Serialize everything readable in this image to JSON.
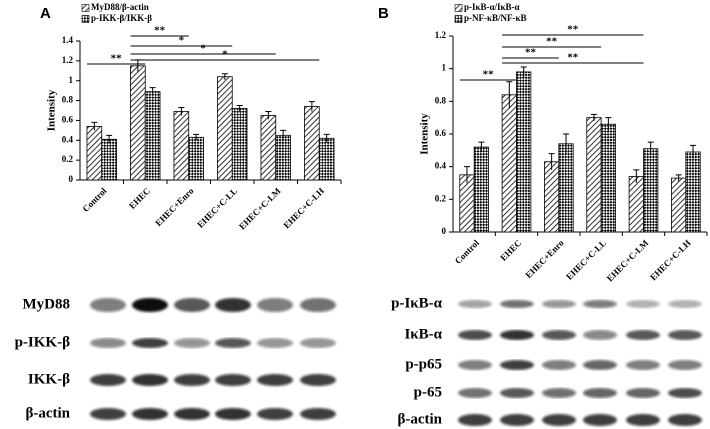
{
  "chart_data": [
    {
      "type": "bar",
      "panel_label": "A",
      "y_label": "Intensity",
      "categories": [
        "Control",
        "EHEC",
        "EHEC+Enro",
        "EHEC+C-LL",
        "EHEC+C-LM",
        "EHEC+C-LH"
      ],
      "series": [
        {
          "name": "MyD88/β-actin",
          "color": "#000000",
          "values": [
            0.54,
            1.15,
            0.69,
            1.04,
            0.65,
            0.74
          ],
          "errors": [
            0.04,
            0.06,
            0.04,
            0.03,
            0.04,
            0.05
          ]
        },
        {
          "name": "p-IKK-β/IKK-β",
          "color": "#000000",
          "values": [
            0.41,
            0.89,
            0.43,
            0.72,
            0.45,
            0.42
          ],
          "errors": [
            0.04,
            0.04,
            0.03,
            0.03,
            0.05,
            0.04
          ]
        }
      ],
      "ylim": [
        0,
        1.4
      ],
      "yticks": [
        0,
        0.2,
        0.4,
        0.6,
        0.8,
        1,
        1.2,
        1.4
      ],
      "annotations": [
        "**",
        "**",
        "*",
        "*",
        "*"
      ]
    },
    {
      "type": "bar",
      "panel_label": "B",
      "y_label": "Intensity",
      "categories": [
        "Control",
        "EHEC",
        "EHEC+Enro",
        "EHEC+C-LL",
        "EHEC+C-LM",
        "EHEC+C-LH"
      ],
      "series": [
        {
          "name": "p-IκB-α/IκB-α",
          "color": "#000000",
          "values": [
            0.35,
            0.84,
            0.43,
            0.7,
            0.34,
            0.33
          ],
          "errors": [
            0.05,
            0.08,
            0.05,
            0.02,
            0.04,
            0.02
          ]
        },
        {
          "name": "p-NF-κB/NF-κB",
          "color": "#000000",
          "values": [
            0.52,
            0.98,
            0.54,
            0.66,
            0.51,
            0.49
          ],
          "errors": [
            0.03,
            0.03,
            0.06,
            0.04,
            0.04,
            0.04
          ]
        }
      ],
      "ylim": [
        0,
        1.2
      ],
      "yticks": [
        0,
        0.2,
        0.4,
        0.6,
        0.8,
        1,
        1.2
      ],
      "annotations": [
        "**",
        "**",
        "**",
        "**",
        "**"
      ]
    }
  ],
  "blots": [
    {
      "labels": [
        "MyD88",
        "p-IKK-β",
        "IKK-β",
        "β-actin"
      ]
    },
    {
      "labels": [
        "p-IκB-α",
        "IκB-α",
        "p-p65",
        "p-65",
        "β-actin"
      ]
    }
  ]
}
